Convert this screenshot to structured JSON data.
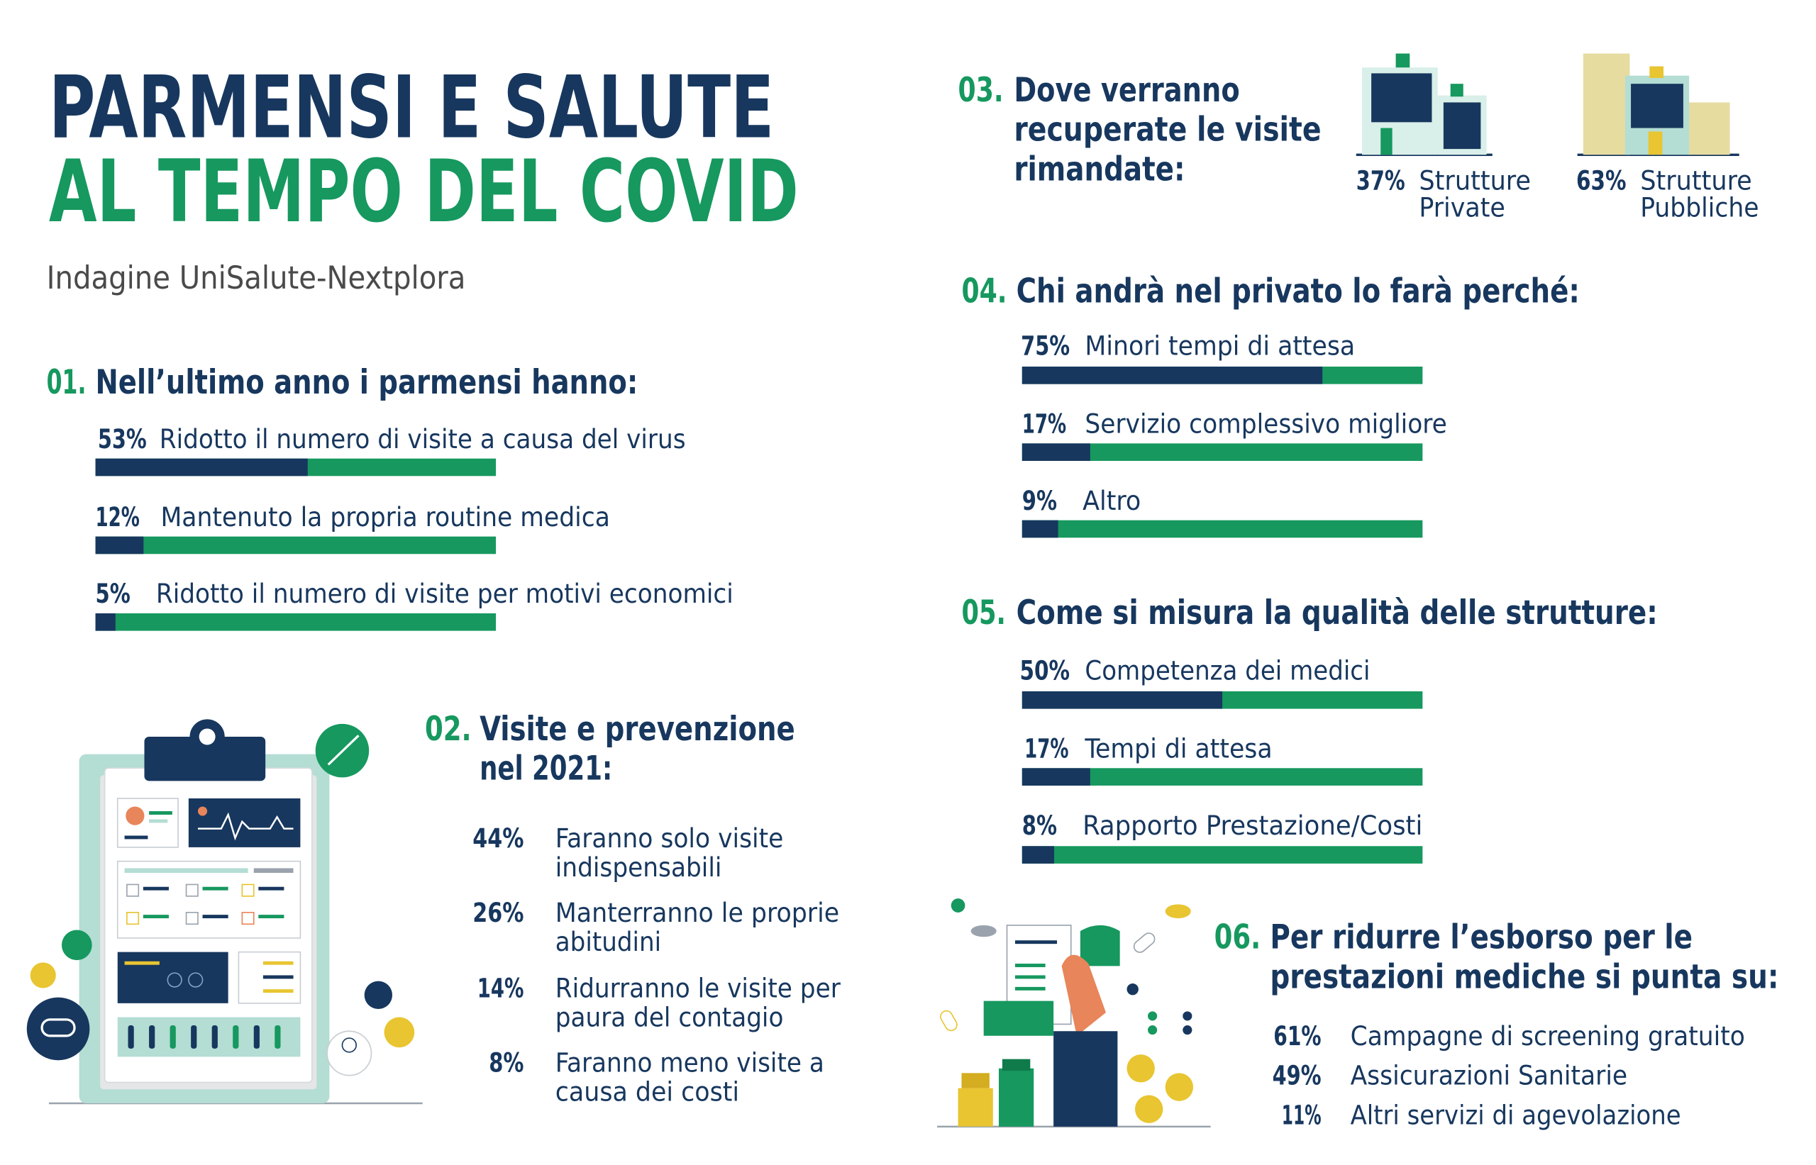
{
  "colors": {
    "bar": "#17375e",
    "track": "#16985f",
    "text": "#17375e",
    "accent": "#16985f",
    "subtitle": "#4a4a4a"
  },
  "header": {
    "title_line1": "PARMENSI E SALUTE",
    "title_line2": "AL TEMPO DEL COVID",
    "subtitle": "Indagine UniSalute-Nextplora"
  },
  "sections": [
    {
      "number": "01.",
      "title": [
        "Nell’ultimo anno i parmensi hanno:"
      ],
      "xlim": [
        0,
        100
      ],
      "items": [
        {
          "value": 53,
          "value_label": "53%",
          "label": "Ridotto il numero di visite a causa del virus"
        },
        {
          "value": 12,
          "value_label": "12%",
          "label": "Mantenuto la propria routine medica"
        },
        {
          "value": 5,
          "value_label": "5%",
          "label": "Ridotto il numero di visite per motivi economici"
        }
      ]
    },
    {
      "number": "02.",
      "title": [
        "Visite e prevenzione",
        "nel 2021:"
      ],
      "items": [
        {
          "percent": "44%",
          "label": [
            "Faranno solo visite",
            "indispensabili"
          ]
        },
        {
          "percent": "26%",
          "label": [
            "Manterranno le proprie",
            "abitudini"
          ]
        },
        {
          "percent": "14%",
          "label": [
            "Ridurranno le visite per",
            "paura del contagio"
          ]
        },
        {
          "percent": "8%",
          "label": [
            "Faranno meno visite a",
            "causa dei costi"
          ]
        }
      ]
    },
    {
      "number": "03.",
      "title": [
        "Dove verranno",
        "recuperate le visite",
        "rimandate:"
      ],
      "items": [
        {
          "percent": "37%",
          "label": [
            "Strutture",
            "Private"
          ]
        },
        {
          "percent": "63%",
          "label": [
            "Strutture",
            "Pubbliche"
          ]
        }
      ]
    },
    {
      "number": "04.",
      "title": [
        "Chi andrà nel privato lo farà perché:"
      ],
      "xlim": [
        0,
        100
      ],
      "items": [
        {
          "value": 75,
          "value_label": "75%",
          "label": "Minori tempi di attesa"
        },
        {
          "value": 17,
          "value_label": "17%",
          "label": "Servizio complessivo migliore"
        },
        {
          "value": 9,
          "value_label": "9%",
          "label": "Altro"
        }
      ]
    },
    {
      "number": "05.",
      "title": [
        "Come si misura la qualità delle strutture:"
      ],
      "xlim": [
        0,
        100
      ],
      "items": [
        {
          "value": 50,
          "value_label": "50%",
          "label": "Competenza dei medici"
        },
        {
          "value": 17,
          "value_label": "17%",
          "label": "Tempi di attesa"
        },
        {
          "value": 8,
          "value_label": "8%",
          "label": "Rapporto Prestazione/Costi"
        }
      ]
    },
    {
      "number": "06.",
      "title": [
        "Per ridurre l’esborso per le",
        "prestazioni mediche si punta su:"
      ],
      "items": [
        {
          "percent": "61%",
          "label": "Campagne di screening gratuito"
        },
        {
          "percent": "49%",
          "label": "Assicurazioni Sanitarie"
        },
        {
          "percent": "11%",
          "label": "Altri servizi di agevolazione"
        }
      ]
    }
  ]
}
